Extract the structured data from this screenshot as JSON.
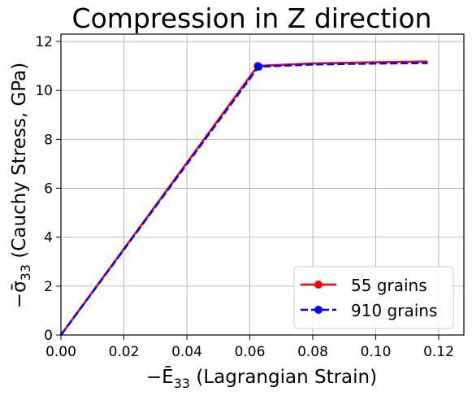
{
  "chart_data": {
    "type": "line",
    "title": "Compression in Z direction",
    "xlabel_main": "−Ē",
    "xlabel_sub": "33",
    "xlabel_rest": " (Lagrangian Strain)",
    "ylabel_main": "−σ̄",
    "ylabel_sub": "33",
    "ylabel_rest": " (Cauchy Stress, GPa)",
    "xlim": [
      0,
      0.128
    ],
    "ylim": [
      0,
      12.3
    ],
    "xticks": [
      0.0,
      0.02,
      0.04,
      0.06,
      0.08,
      0.1,
      0.12
    ],
    "xtick_labels": [
      "0.00",
      "0.02",
      "0.04",
      "0.06",
      "0.08",
      "0.10",
      "0.12"
    ],
    "yticks": [
      0,
      2,
      4,
      6,
      8,
      10,
      12
    ],
    "ytick_labels": [
      "0",
      "2",
      "4",
      "6",
      "8",
      "10",
      "12"
    ],
    "grid": true,
    "legend_position": "lower-right",
    "series": [
      {
        "name": "55 grains",
        "color": "#ff0000",
        "linestyle": "solid",
        "x": [
          0.0,
          0.0625,
          0.08,
          0.1,
          0.1165
        ],
        "y": [
          0.0,
          11.0,
          11.1,
          11.15,
          11.18
        ],
        "marker_x": [
          0.0625
        ],
        "marker_y": [
          11.0
        ]
      },
      {
        "name": "910 grains",
        "color": "#0000ff",
        "linestyle": "dashed",
        "x": [
          0.0,
          0.0628,
          0.08,
          0.1,
          0.1165
        ],
        "y": [
          0.0,
          10.97,
          11.06,
          11.1,
          11.12
        ],
        "marker_x": [
          0.0628
        ],
        "marker_y": [
          10.97
        ]
      }
    ]
  }
}
